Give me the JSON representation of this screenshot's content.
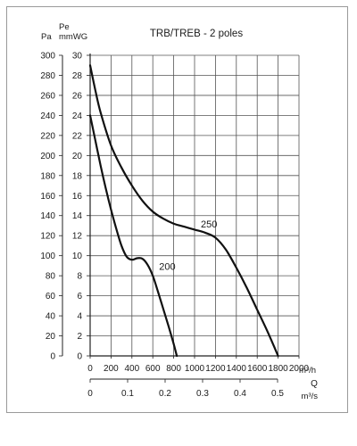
{
  "chart_data": {
    "type": "line",
    "title": "TRB/TREB - 2 poles",
    "y_left_unit": "Pa",
    "y_right_unit_top": "Pe",
    "y_right_unit_bottom": "mmWG",
    "x_unit": "m³/h",
    "x_symbol": "Q",
    "x2_unit": "m³/s",
    "x_ticks": [
      0,
      200,
      400,
      600,
      800,
      1000,
      1200,
      1400,
      1600,
      1800,
      2000
    ],
    "x2_ticks": [
      0,
      0.1,
      0.2,
      0.3,
      0.4,
      0.5
    ],
    "y_pa_ticks": [
      0,
      20,
      40,
      60,
      80,
      100,
      120,
      140,
      160,
      180,
      200,
      220,
      240,
      260,
      280,
      300
    ],
    "y_mmwg_ticks": [
      0,
      2,
      4,
      6,
      8,
      10,
      12,
      14,
      16,
      18,
      20,
      22,
      24,
      26,
      28,
      30
    ],
    "xlim": [
      0,
      2000
    ],
    "ylim_mmwg": [
      0,
      30
    ],
    "grid": true,
    "series": [
      {
        "name": "200",
        "x": [
          0,
          50,
          100,
          150,
          200,
          250,
          300,
          350,
          400,
          450,
          500,
          550,
          600,
          650,
          700,
          750,
          800,
          830
        ],
        "y": [
          24,
          21.5,
          19,
          16.7,
          14.6,
          12.7,
          11,
          9.9,
          9.6,
          9.75,
          9.7,
          9.1,
          8,
          6.4,
          4.7,
          3,
          1.2,
          0
        ]
      },
      {
        "name": "250",
        "x": [
          0,
          50,
          100,
          200,
          300,
          400,
          500,
          600,
          700,
          800,
          900,
          1000,
          1100,
          1200,
          1300,
          1400,
          1500,
          1600,
          1700,
          1800
        ],
        "y": [
          29,
          26.5,
          24.3,
          21,
          18.8,
          17,
          15.5,
          14.4,
          13.7,
          13.2,
          12.9,
          12.6,
          12.3,
          11.8,
          10.6,
          8.8,
          6.8,
          4.6,
          2.4,
          0
        ]
      }
    ],
    "label_positions_data": [
      {
        "series": "200",
        "x": 660,
        "y": 8.6
      },
      {
        "series": "250",
        "x": 1060,
        "y": 12.8
      }
    ]
  }
}
